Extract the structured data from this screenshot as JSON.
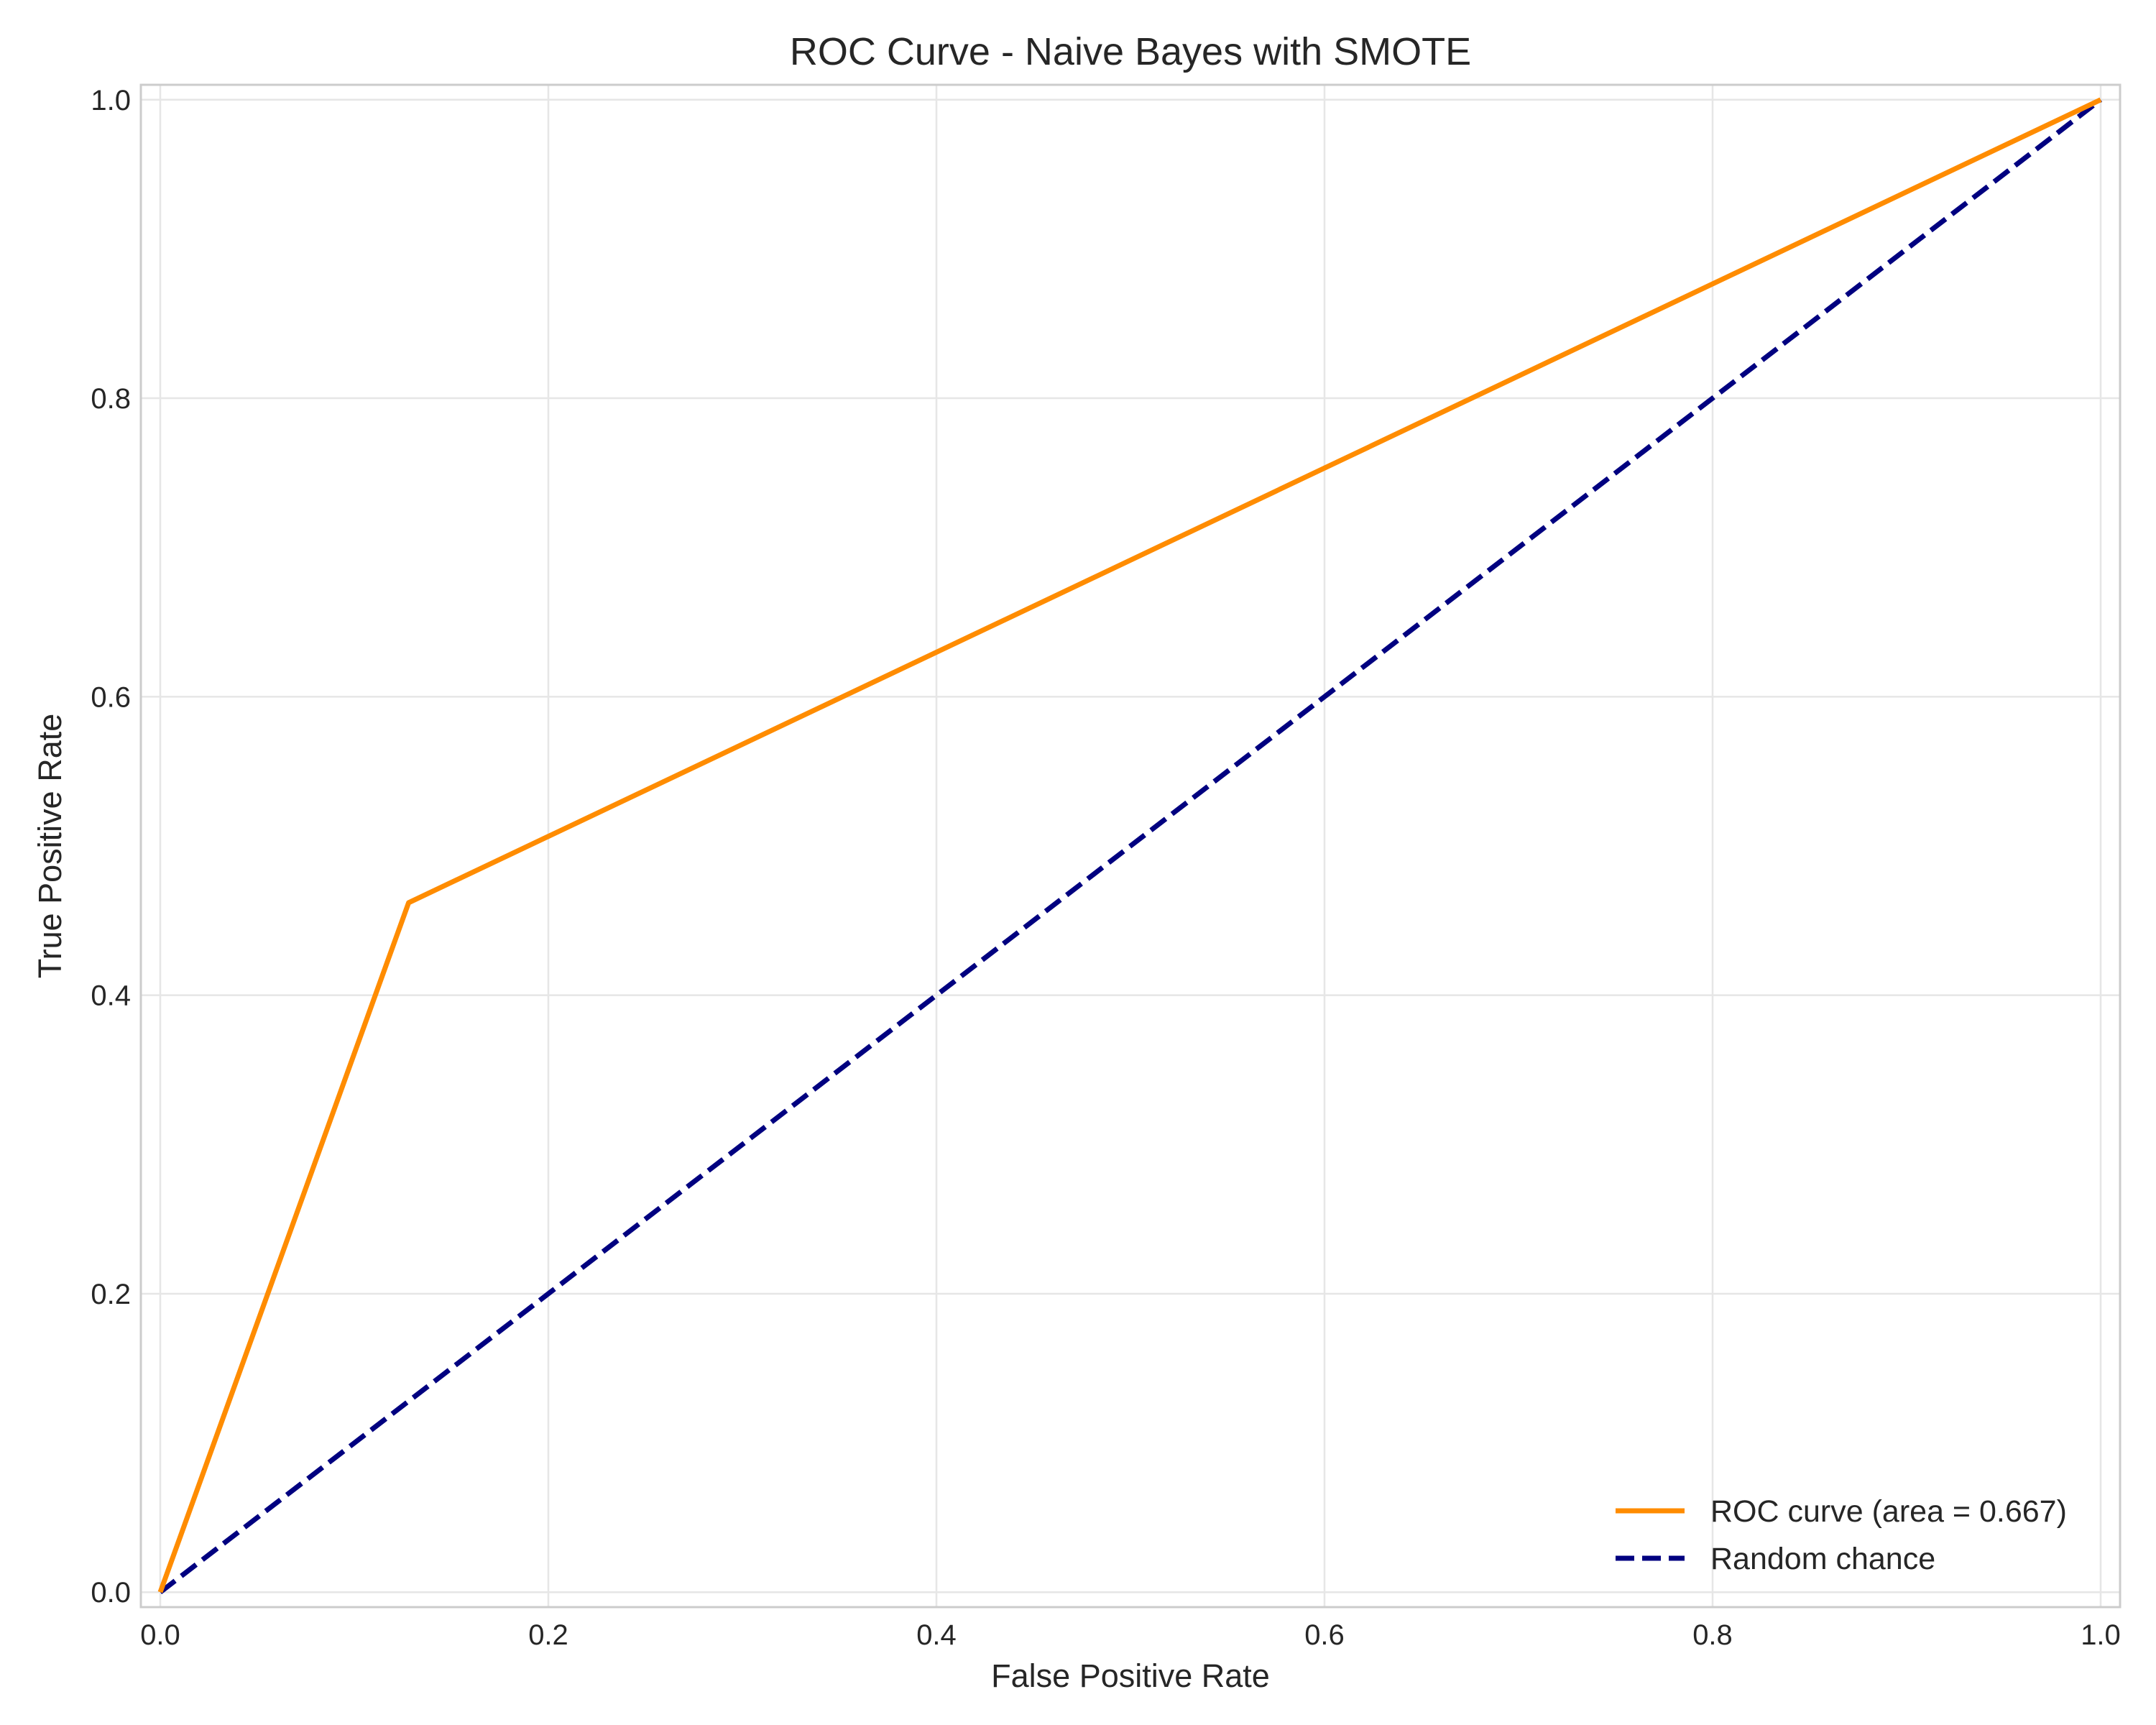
{
  "chart_data": {
    "type": "line",
    "title": "ROC Curve - Naive Bayes with SMOTE",
    "xlabel": "False Positive Rate",
    "ylabel": "True Positive Rate",
    "xlim": [
      -0.01,
      1.01
    ],
    "ylim": [
      -0.01,
      1.01
    ],
    "xticks": [
      0.0,
      0.2,
      0.4,
      0.6,
      0.8,
      1.0
    ],
    "yticks": [
      0.0,
      0.2,
      0.4,
      0.6,
      0.8,
      1.0
    ],
    "xtick_labels": [
      "0.0",
      "0.2",
      "0.4",
      "0.6",
      "0.8",
      "1.0"
    ],
    "ytick_labels": [
      "0.0",
      "0.2",
      "0.4",
      "0.6",
      "0.8",
      "1.0"
    ],
    "grid": true,
    "legend_position": "lower-right",
    "series": [
      {
        "name": "ROC curve (area = 0.667)",
        "color": "#ff8c00",
        "style": "solid",
        "x": [
          0.0,
          0.128,
          1.0
        ],
        "y": [
          0.0,
          0.462,
          1.0
        ]
      },
      {
        "name": "Random chance",
        "color": "#000080",
        "style": "dashed",
        "x": [
          0.0,
          1.0
        ],
        "y": [
          0.0,
          1.0
        ]
      }
    ]
  }
}
